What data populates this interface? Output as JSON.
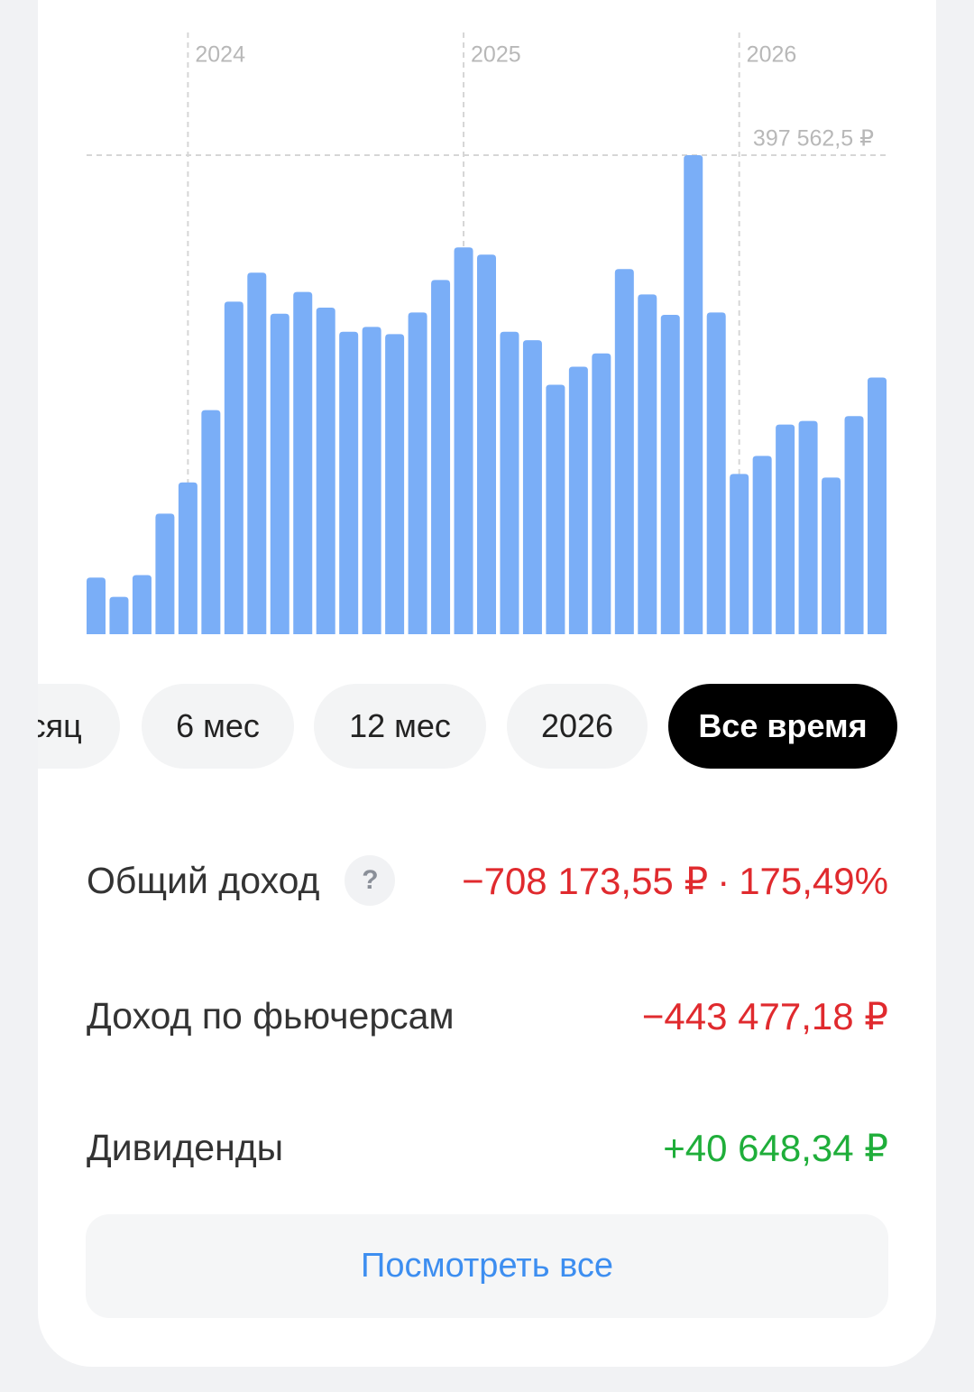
{
  "chart_data": {
    "type": "bar",
    "color": "#7aaef7",
    "categories": [
      null,
      null,
      null,
      null,
      "2024",
      null,
      null,
      null,
      null,
      null,
      null,
      null,
      null,
      null,
      null,
      null,
      "2025",
      null,
      null,
      null,
      null,
      null,
      null,
      null,
      null,
      null,
      null,
      null,
      "2026",
      null,
      null,
      null,
      null,
      null,
      null
    ],
    "values": [
      47000,
      31000,
      49000,
      100000,
      126000,
      186000,
      276000,
      300000,
      266000,
      284000,
      271000,
      251000,
      255000,
      249000,
      267000,
      294000,
      321000,
      315000,
      251000,
      244000,
      207000,
      222000,
      233000,
      303000,
      282000,
      265000,
      397562.5,
      267000,
      133000,
      148000,
      174000,
      177000,
      130000,
      181000,
      213000
    ],
    "ylim": [
      0,
      397562.5
    ],
    "max_line": {
      "value": 397562.5,
      "label": "397 562,5 ₽"
    }
  },
  "period_tabs": {
    "items": [
      "Месяц",
      "6 мес",
      "12 мес",
      "2026",
      "Все время"
    ],
    "selected": 4
  },
  "stats": [
    {
      "label": "Общий доход",
      "help": "?",
      "value": "−708 173,55 ₽",
      "percent": "175,49%",
      "tone": "negative"
    },
    {
      "label": "Доход по фьючерсам",
      "value": "−443 477,18 ₽",
      "tone": "negative"
    },
    {
      "label": "Дивиденды",
      "value": "+40 648,34 ₽",
      "tone": "positive"
    }
  ],
  "button": "Посмотреть все"
}
